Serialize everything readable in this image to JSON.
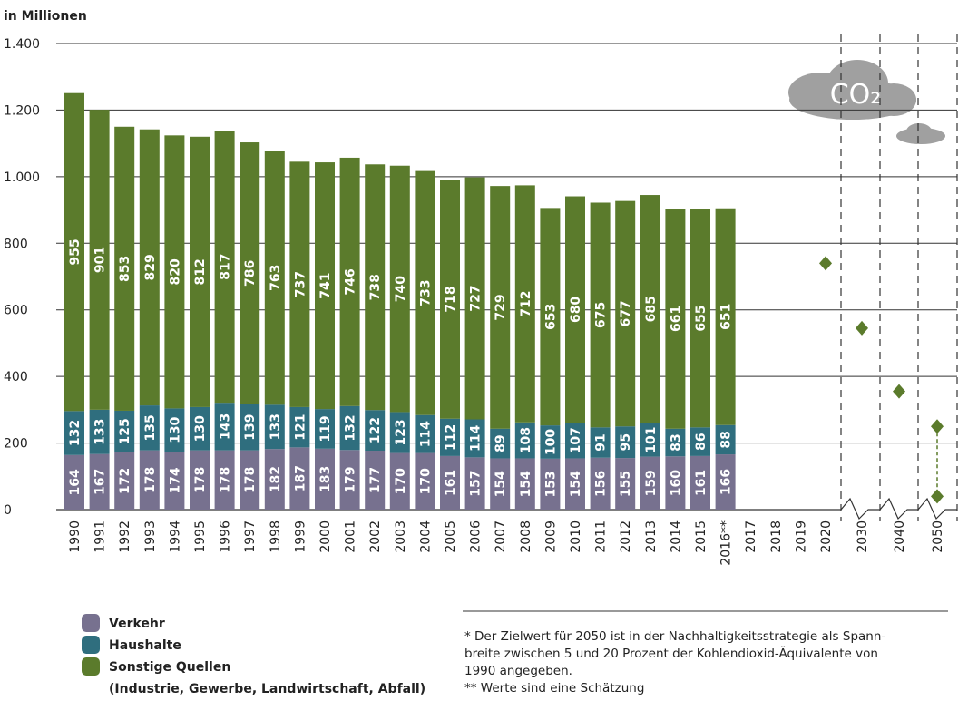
{
  "chart_data": {
    "type": "stacked_bar",
    "unit_label": "in Millionen",
    "categories": [
      "1990",
      "1991",
      "1992",
      "1993",
      "1994",
      "1995",
      "1996",
      "1997",
      "1998",
      "1999",
      "2000",
      "2001",
      "2002",
      "2003",
      "2004",
      "2005",
      "2006",
      "2007",
      "2008",
      "2009",
      "2010",
      "2011",
      "2012",
      "2013",
      "2014",
      "2015",
      "2016**",
      "2017",
      "2018",
      "2019",
      "2020",
      "2030",
      "2040",
      "2050"
    ],
    "series": [
      {
        "name": "Verkehr",
        "color": "#77718f",
        "values": [
          164,
          167,
          172,
          178,
          174,
          178,
          178,
          178,
          182,
          187,
          183,
          179,
          177,
          170,
          170,
          161,
          157,
          154,
          154,
          153,
          154,
          156,
          155,
          159,
          160,
          161,
          166,
          null,
          null,
          null,
          null,
          null,
          null,
          null
        ]
      },
      {
        "name": "Haushalte",
        "color": "#2f6e7e",
        "values": [
          132,
          133,
          125,
          135,
          130,
          130,
          143,
          139,
          133,
          121,
          119,
          132,
          122,
          123,
          114,
          112,
          114,
          89,
          108,
          100,
          107,
          91,
          95,
          101,
          83,
          86,
          88,
          null,
          null,
          null,
          null,
          null,
          null,
          null
        ]
      },
      {
        "name": "Sonstige Quellen",
        "color": "#5b7b2c",
        "values": [
          955,
          901,
          853,
          829,
          820,
          812,
          817,
          786,
          763,
          737,
          741,
          746,
          738,
          740,
          733,
          718,
          727,
          729,
          712,
          653,
          680,
          675,
          677,
          685,
          661,
          655,
          651,
          null,
          null,
          null,
          null,
          null,
          null,
          null
        ]
      }
    ],
    "legend_note": "(Industrie, Gewerbe, Landwirtschaft, Abfall)",
    "targets": {
      "color": "#5b7b2c",
      "values": [
        null,
        null,
        null,
        null,
        null,
        null,
        null,
        null,
        null,
        null,
        null,
        null,
        null,
        null,
        null,
        null,
        null,
        null,
        null,
        null,
        null,
        null,
        null,
        null,
        null,
        null,
        null,
        null,
        null,
        null,
        740,
        545,
        355,
        250
      ]
    },
    "target_low": {
      "category": "2050",
      "value": 40
    },
    "ylim": [
      0,
      1400
    ],
    "yticks": [
      0,
      200,
      400,
      600,
      800,
      1000,
      1200,
      1400
    ],
    "ytick_labels": [
      "0",
      "200",
      "400",
      "600",
      "800",
      "1.000",
      "1.200",
      "1.400"
    ],
    "cloud_label": "CO₂",
    "footnotes": [
      "* Der Zielwert für 2050 ist in der Nachhaltigkeitsstrategie als Spann-",
      "breite zwischen 5 und 20 Prozent der Kohlendioxid-Äquivalente von",
      "1990 angegeben.",
      "** Werte sind eine Schätzung"
    ],
    "grid": true
  }
}
